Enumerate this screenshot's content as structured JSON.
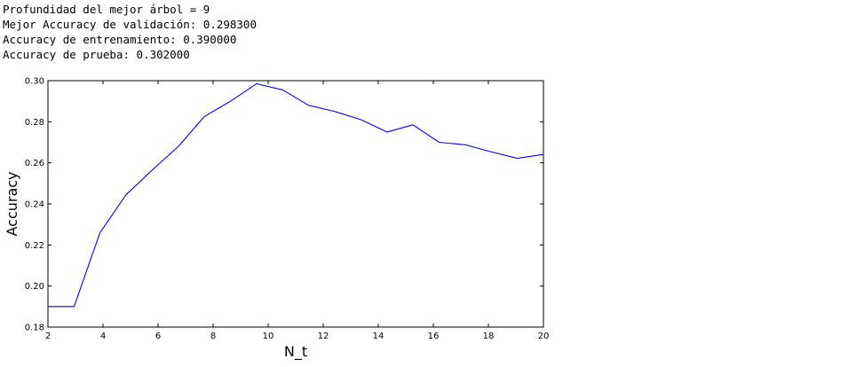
{
  "output": {
    "lines": [
      "Profundidad del mejor árbol = 9",
      "Mejor Accuracy de validación: 0.298300",
      "Accuracy de entrenamiento: 0.390000",
      "Accuracy de prueba: 0.302000"
    ]
  },
  "chart_data": {
    "type": "line",
    "title": "",
    "xlabel": "N_t",
    "ylabel": "Accuracy",
    "xlim": [
      2,
      20
    ],
    "ylim": [
      0.18,
      0.3
    ],
    "xticks": [
      "2",
      "4",
      "6",
      "8",
      "10",
      "12",
      "14",
      "16",
      "18",
      "20"
    ],
    "yticks": [
      "0.18",
      "0.20",
      "0.22",
      "0.24",
      "0.26",
      "0.28",
      "0.30"
    ],
    "grid": false,
    "series": [
      {
        "color": "#0000ff",
        "x": [
          2,
          2.95,
          3.89,
          4.84,
          5.79,
          6.74,
          7.68,
          8.63,
          9.58,
          10.53,
          11.47,
          12.42,
          13.37,
          14.32,
          15.26,
          16.21,
          17.16,
          18.11,
          19.05,
          20
        ],
        "y": [
          0.19,
          0.19,
          0.226,
          0.2445,
          0.2565,
          0.268,
          0.2825,
          0.29,
          0.2985,
          0.2955,
          0.288,
          0.285,
          0.281,
          0.275,
          0.2785,
          0.27,
          0.2688,
          0.2653,
          0.2622,
          0.2641
        ]
      }
    ]
  }
}
